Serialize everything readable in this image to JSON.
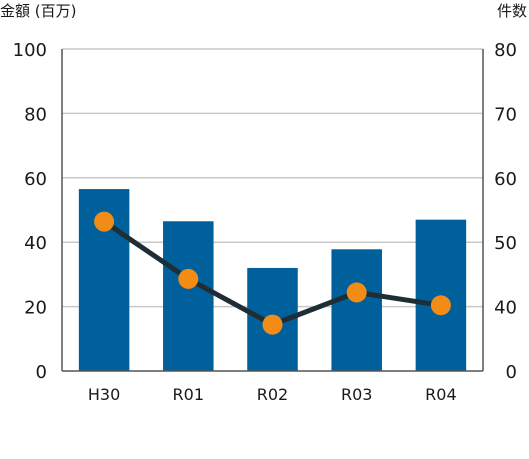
{
  "chart_data": {
    "type": "bar",
    "categories": [
      "H30",
      "R01",
      "R02",
      "R03",
      "R04"
    ],
    "series": [
      {
        "type": "bar",
        "axis": "left",
        "values": [
          56.5,
          46.5,
          32,
          37.8,
          47
        ]
      },
      {
        "type": "line",
        "axis": "right",
        "values": [
          53.2,
          44.3,
          37.2,
          42.2,
          40.2
        ]
      }
    ],
    "ylabel_left": "金額 (百万)",
    "ylabel_right": "件数",
    "yticks_left": [
      "100",
      "80",
      "60",
      "40",
      "20",
      "0"
    ],
    "yticks_right": [
      "80",
      "70",
      "60",
      "50",
      "40",
      "0"
    ],
    "ylim_left": [
      0,
      100
    ],
    "right_axis_mapping": {
      "note": "right axis is broken between 0 and 40",
      "ticks": [
        [
          40,
          20
        ],
        [
          50,
          40
        ],
        [
          60,
          60
        ],
        [
          70,
          80
        ],
        [
          80,
          100
        ]
      ]
    },
    "grid": true,
    "colors": {
      "bar": "#00609c",
      "line": "#1f2d35",
      "marker": "#f38b17",
      "grid": "#c8c8c8",
      "axis": "#555555"
    }
  }
}
